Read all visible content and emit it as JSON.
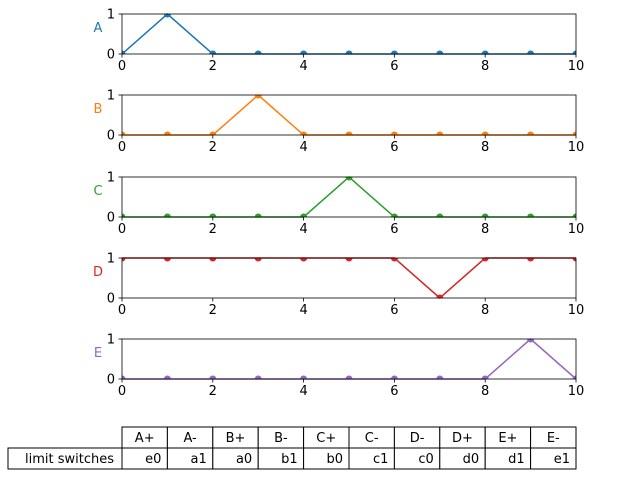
{
  "chart_data": [
    {
      "type": "line",
      "ylabel": "A",
      "color": "#1f77b4",
      "x": [
        0,
        1,
        2,
        3,
        4,
        5,
        6,
        7,
        8,
        9,
        10
      ],
      "values": [
        0,
        1,
        0,
        0,
        0,
        0,
        0,
        0,
        0,
        0,
        0
      ],
      "xlim": [
        0,
        10
      ],
      "ylim": [
        0,
        1
      ],
      "xticks": [
        "0",
        "2",
        "4",
        "6",
        "8",
        "10"
      ],
      "yticks": [
        "0",
        "1"
      ]
    },
    {
      "type": "line",
      "ylabel": "B",
      "color": "#ff7f0e",
      "x": [
        0,
        1,
        2,
        3,
        4,
        5,
        6,
        7,
        8,
        9,
        10
      ],
      "values": [
        0,
        0,
        0,
        1,
        0,
        0,
        0,
        0,
        0,
        0,
        0
      ],
      "xlim": [
        0,
        10
      ],
      "ylim": [
        0,
        1
      ],
      "xticks": [
        "0",
        "2",
        "4",
        "6",
        "8",
        "10"
      ],
      "yticks": [
        "0",
        "1"
      ]
    },
    {
      "type": "line",
      "ylabel": "C",
      "color": "#2ca02c",
      "x": [
        0,
        1,
        2,
        3,
        4,
        5,
        6,
        7,
        8,
        9,
        10
      ],
      "values": [
        0,
        0,
        0,
        0,
        0,
        1,
        0,
        0,
        0,
        0,
        0
      ],
      "xlim": [
        0,
        10
      ],
      "ylim": [
        0,
        1
      ],
      "xticks": [
        "0",
        "2",
        "4",
        "6",
        "8",
        "10"
      ],
      "yticks": [
        "0",
        "1"
      ]
    },
    {
      "type": "line",
      "ylabel": "D",
      "color": "#d62728",
      "x": [
        0,
        1,
        2,
        3,
        4,
        5,
        6,
        7,
        8,
        9,
        10
      ],
      "values": [
        1,
        1,
        1,
        1,
        1,
        1,
        1,
        0,
        1,
        1,
        1
      ],
      "xlim": [
        0,
        10
      ],
      "ylim": [
        0,
        1
      ],
      "xticks": [
        "0",
        "2",
        "4",
        "6",
        "8",
        "10"
      ],
      "yticks": [
        "0",
        "1"
      ]
    },
    {
      "type": "line",
      "ylabel": "E",
      "color": "#9467bd",
      "x": [
        0,
        1,
        2,
        3,
        4,
        5,
        6,
        7,
        8,
        9,
        10
      ],
      "values": [
        0,
        0,
        0,
        0,
        0,
        0,
        0,
        0,
        0,
        1,
        0
      ],
      "xlim": [
        0,
        10
      ],
      "ylim": [
        0,
        1
      ],
      "xticks": [
        "0",
        "2",
        "4",
        "6",
        "8",
        "10"
      ],
      "yticks": [
        "0",
        "1"
      ]
    },
    {
      "type": "table",
      "columns": [
        "A+",
        "A-",
        "B+",
        "B-",
        "C+",
        "C-",
        "D-",
        "D+",
        "E+",
        "E-"
      ],
      "rows": [
        {
          "label": "limit switches",
          "cells": [
            "e0",
            "a1",
            "a0",
            "b1",
            "b0",
            "c1",
            "c0",
            "d0",
            "d1",
            "e1"
          ]
        }
      ]
    }
  ]
}
